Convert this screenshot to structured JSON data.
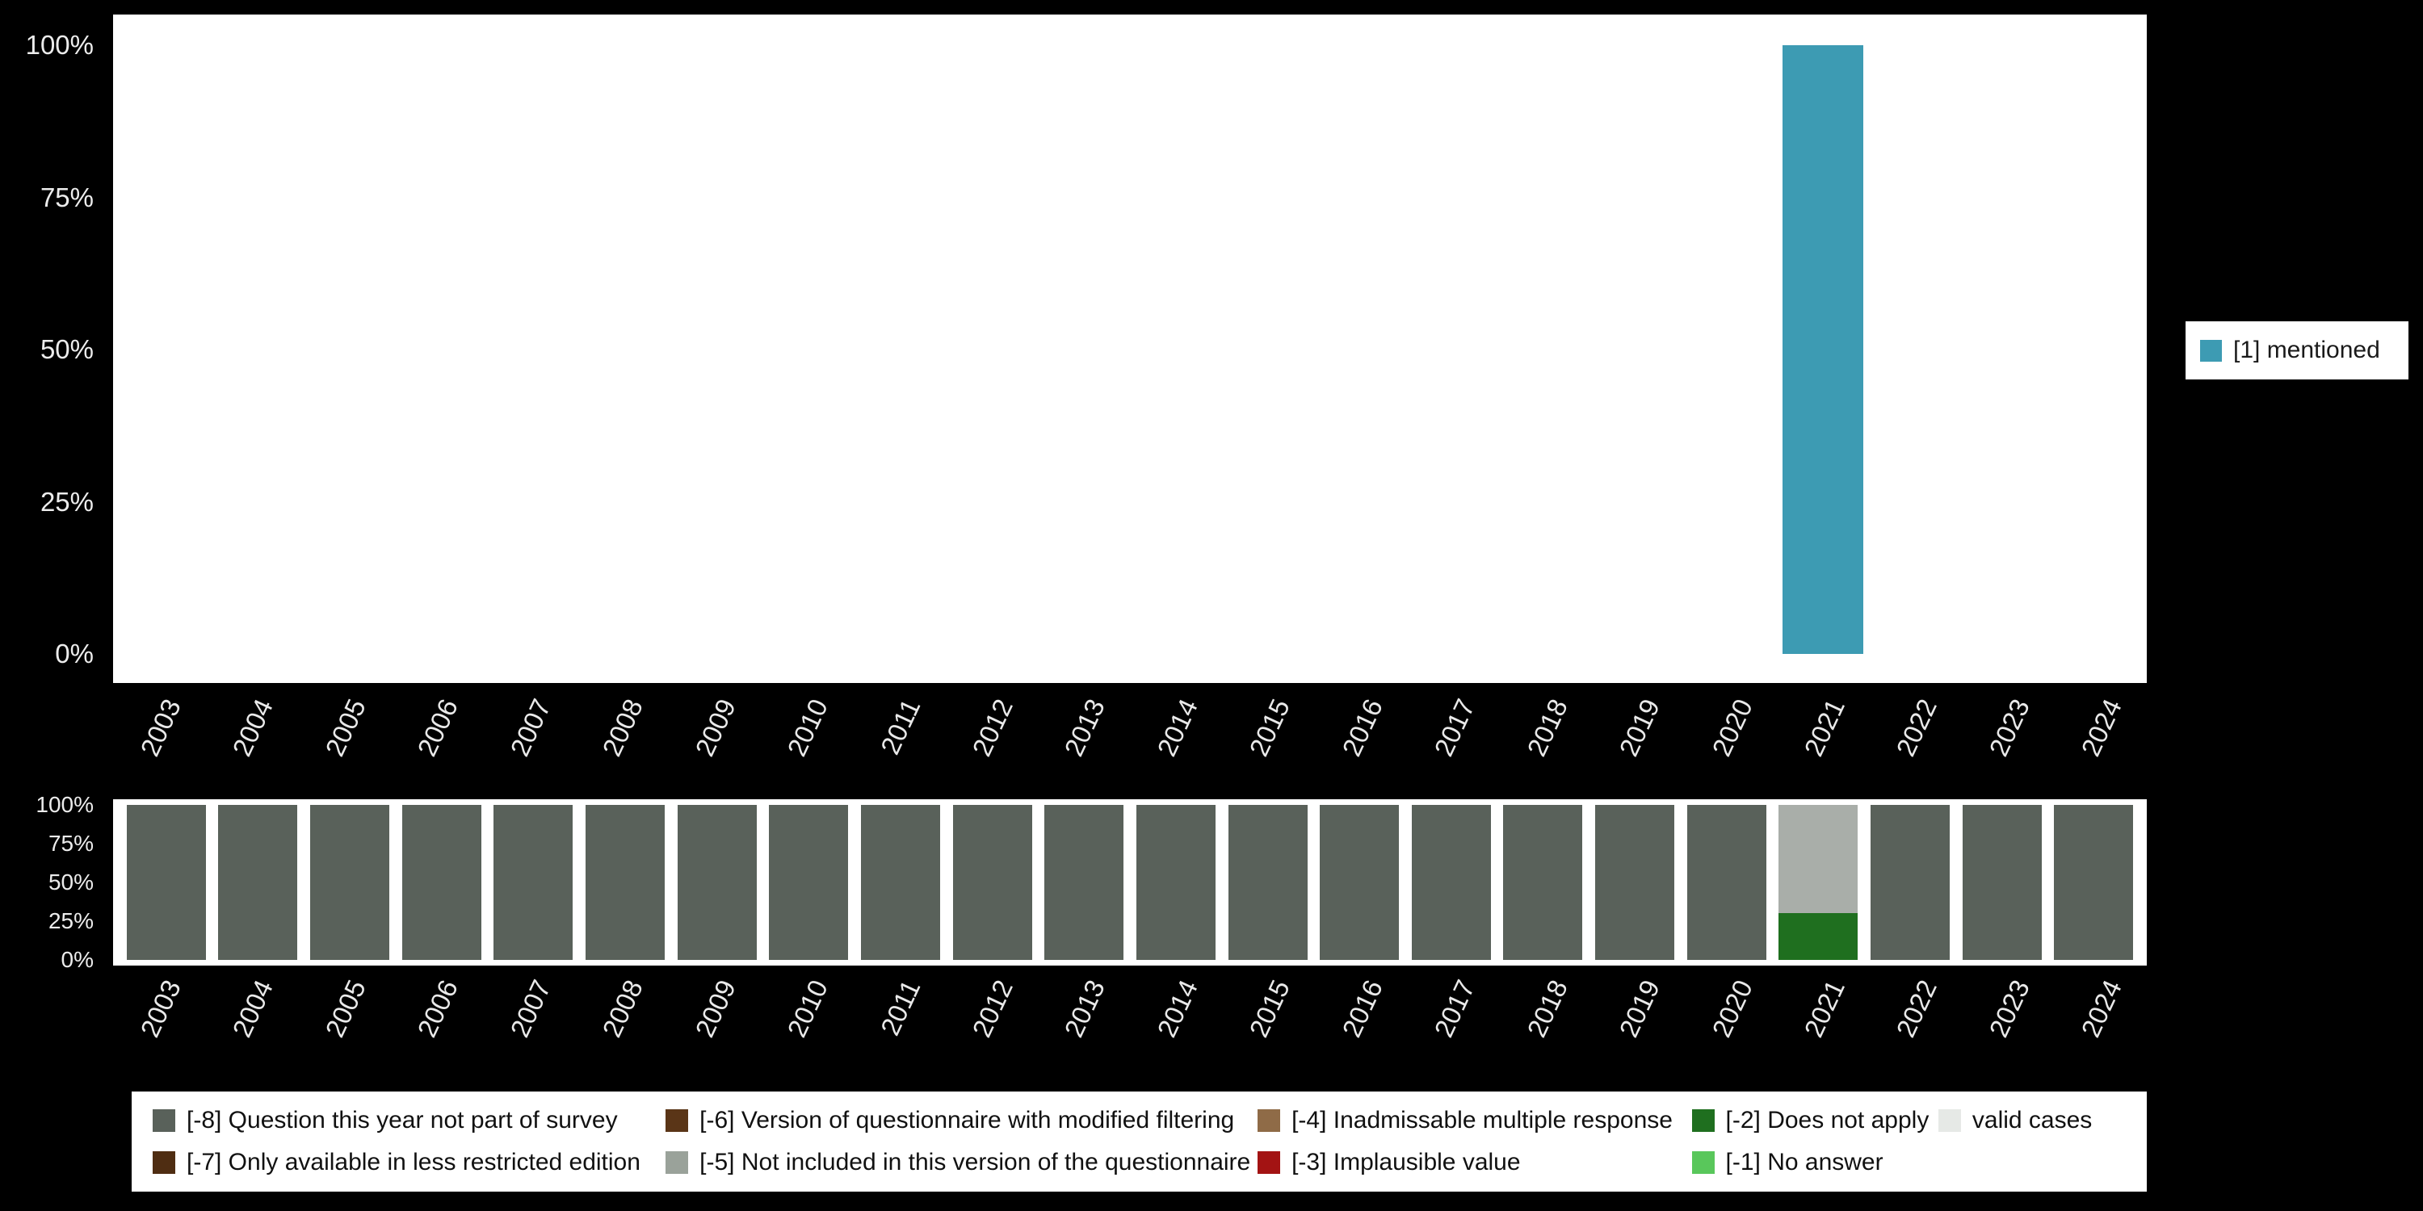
{
  "colors": {
    "background": "#000000",
    "panel": "#ffffff",
    "axis_text": "#ececec",
    "legend_text": "#111111"
  },
  "top_legend": {
    "label": "[1] mentioned",
    "color": "#3d9bb3"
  },
  "bottom_legend": {
    "items": [
      {
        "label": "[-8] Question this year not part of survey",
        "color": "#59615a"
      },
      {
        "label": "[-7] Only available in less restricted edition",
        "color": "#4f2d12"
      },
      {
        "label": "[-6] Version of questionnaire with modified filtering",
        "color": "#5a3517"
      },
      {
        "label": "[-5] Not included in this version of the questionnaire",
        "color": "#9aa29a"
      },
      {
        "label": "[-4] Inadmissable multiple response",
        "color": "#8f6b47"
      },
      {
        "label": "[-3] Implausible value",
        "color": "#a31313"
      },
      {
        "label": "[-2] Does not apply",
        "color": "#1f6f1f"
      },
      {
        "label": "[-1] No answer",
        "color": "#59c75b"
      },
      {
        "label": "valid cases",
        "color": "#e6e9e6"
      }
    ]
  },
  "chart_data": [
    {
      "type": "bar",
      "title": "",
      "categories": [
        "2003",
        "2004",
        "2005",
        "2006",
        "2007",
        "2008",
        "2009",
        "2010",
        "2011",
        "2012",
        "2013",
        "2014",
        "2015",
        "2016",
        "2017",
        "2018",
        "2019",
        "2020",
        "2021",
        "2022",
        "2023",
        "2024"
      ],
      "series": [
        {
          "name": "[1] mentioned",
          "color": "#3d9bb3",
          "values": [
            0,
            0,
            0,
            0,
            0,
            0,
            0,
            0,
            0,
            0,
            0,
            0,
            0,
            0,
            0,
            0,
            0,
            0,
            100,
            0,
            0,
            0
          ]
        }
      ],
      "xlabel": "",
      "ylabel": "",
      "ylim": [
        0,
        100
      ],
      "yticks": [
        0,
        25,
        50,
        75,
        100
      ],
      "ytick_labels": [
        "0%",
        "25%",
        "50%",
        "75%",
        "100%"
      ],
      "grid": false,
      "legend_position": "right"
    },
    {
      "type": "bar",
      "stacked": true,
      "title": "",
      "categories": [
        "2003",
        "2004",
        "2005",
        "2006",
        "2007",
        "2008",
        "2009",
        "2010",
        "2011",
        "2012",
        "2013",
        "2014",
        "2015",
        "2016",
        "2017",
        "2018",
        "2019",
        "2020",
        "2021",
        "2022",
        "2023",
        "2024"
      ],
      "series": [
        {
          "name": "[-8] Question this year not part of survey",
          "color": "#59615a",
          "values": [
            100,
            100,
            100,
            100,
            100,
            100,
            100,
            100,
            100,
            100,
            100,
            100,
            100,
            100,
            100,
            100,
            100,
            100,
            0,
            100,
            100,
            100
          ]
        },
        {
          "name": "[-2] Does not apply",
          "color": "#1f6f1f",
          "values": [
            0,
            0,
            0,
            0,
            0,
            0,
            0,
            0,
            0,
            0,
            0,
            0,
            0,
            0,
            0,
            0,
            0,
            0,
            30,
            0,
            0,
            0
          ]
        },
        {
          "name": "valid cases",
          "color": "#a9aea9",
          "values": [
            0,
            0,
            0,
            0,
            0,
            0,
            0,
            0,
            0,
            0,
            0,
            0,
            0,
            0,
            0,
            0,
            0,
            0,
            70,
            0,
            0,
            0
          ]
        }
      ],
      "xlabel": "",
      "ylabel": "",
      "ylim": [
        0,
        100
      ],
      "yticks": [
        0,
        25,
        50,
        75,
        100
      ],
      "ytick_labels": [
        "0%",
        "25%",
        "50%",
        "75%",
        "100%"
      ],
      "grid": false,
      "legend_position": "bottom"
    }
  ]
}
